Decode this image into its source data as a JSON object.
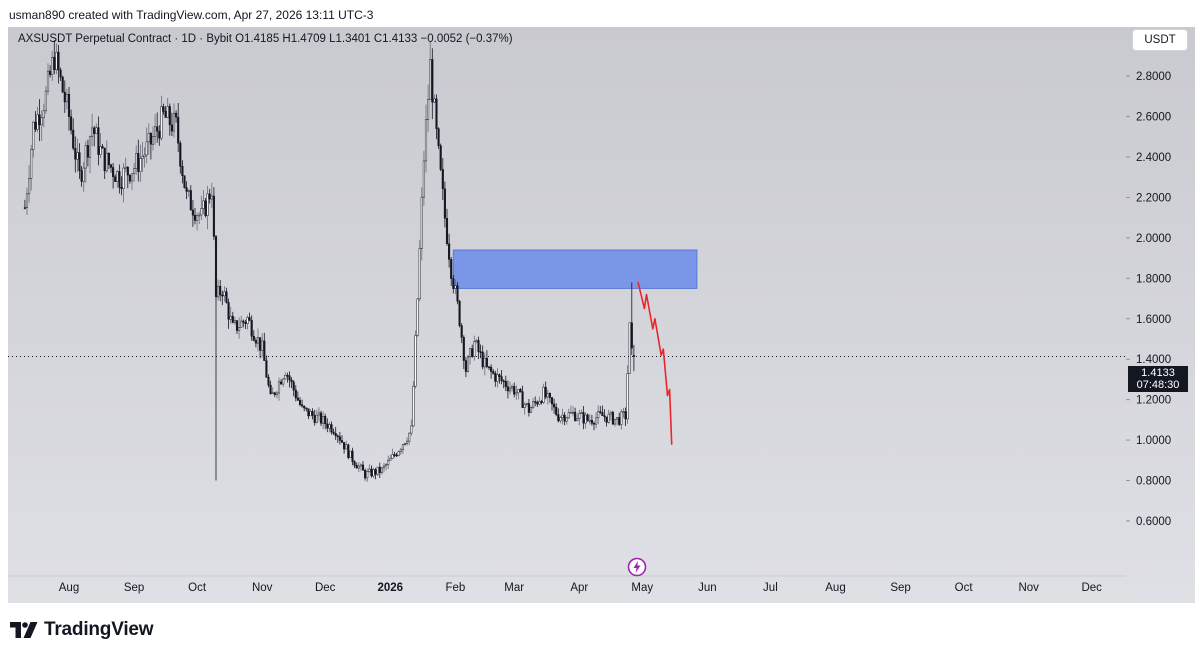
{
  "header": {
    "credit": "usman890 created with TradingView.com, Apr 27, 2026 13:11 UTC-3"
  },
  "legend": {
    "text": "AXSUSDT Perpetual Contract · 1D · Bybit  O1.4185  H1.4709  L1.3401  C1.4133  −0.0052 (−0.37%)"
  },
  "currency_button": "USDT",
  "last_price": {
    "price": "1.4133",
    "countdown": "07:48:30",
    "value": 1.4133
  },
  "footer": {
    "brand": "TradingView"
  },
  "colors": {
    "background": "#dfe0e5",
    "candle": "#131722",
    "zone": "#7b96e6",
    "projection": "#e8262d",
    "price_tag": "#131722"
  },
  "icons": {
    "logo": "tradingview-logo-icon",
    "lightning": "lightning-icon"
  },
  "chart_data": {
    "type": "candlestick",
    "symbol": "AXSUSDT Perpetual Contract",
    "interval": "1D",
    "exchange": "Bybit",
    "ohlc_last": {
      "open": 1.4185,
      "high": 1.4709,
      "low": 1.3401,
      "close": 1.4133,
      "change": -0.0052,
      "change_pct": -0.37
    },
    "y_axis": {
      "ticks": [
        0.6,
        0.8,
        1.0,
        1.2,
        1.4,
        1.6,
        1.8,
        2.0,
        2.2,
        2.4,
        2.6,
        2.8
      ],
      "tick_labels": [
        "0.6000",
        "0.8000",
        "1.0000",
        "1.2000",
        "1.4000",
        "1.6000",
        "1.8000",
        "2.0000",
        "2.2000",
        "2.4000",
        "2.6000",
        "2.8000"
      ],
      "ylim": [
        0.5,
        3.0
      ]
    },
    "x_axis": {
      "tick_labels": [
        "Aug",
        "Sep",
        "Oct",
        "Nov",
        "Dec",
        "2026",
        "Feb",
        "Mar",
        "Apr",
        "May",
        "Jun",
        "Jul",
        "Aug",
        "Sep",
        "Oct",
        "Nov",
        "Dec"
      ],
      "tick_dates": [
        "2025-08-01",
        "2025-09-01",
        "2025-10-01",
        "2025-11-01",
        "2025-12-01",
        "2026-01-01",
        "2026-02-01",
        "2026-03-01",
        "2026-04-01",
        "2026-05-01",
        "2026-06-01",
        "2026-07-01",
        "2026-08-01",
        "2026-09-01",
        "2026-10-01",
        "2026-11-01",
        "2026-12-01"
      ],
      "bold_label": "2026"
    },
    "price_anchors": [
      {
        "date": "2025-07-11",
        "close": 2.15
      },
      {
        "date": "2025-07-15",
        "close": 2.55
      },
      {
        "date": "2025-07-21",
        "close": 2.7
      },
      {
        "date": "2025-07-25",
        "close": 2.9
      },
      {
        "date": "2025-08-01",
        "close": 2.6
      },
      {
        "date": "2025-08-06",
        "close": 2.3
      },
      {
        "date": "2025-08-12",
        "close": 2.55
      },
      {
        "date": "2025-08-17",
        "close": 2.4
      },
      {
        "date": "2025-08-25",
        "close": 2.3
      },
      {
        "date": "2025-09-01",
        "close": 2.35
      },
      {
        "date": "2025-09-08",
        "close": 2.45
      },
      {
        "date": "2025-09-15",
        "close": 2.6
      },
      {
        "date": "2025-09-21",
        "close": 2.55
      },
      {
        "date": "2025-09-26",
        "close": 2.2
      },
      {
        "date": "2025-10-03",
        "close": 2.1
      },
      {
        "date": "2025-10-08",
        "close": 2.25
      },
      {
        "date": "2025-10-10",
        "close": 1.7
      },
      {
        "date": "2025-10-13",
        "close": 1.75
      },
      {
        "date": "2025-10-18",
        "close": 1.55
      },
      {
        "date": "2025-10-25",
        "close": 1.6
      },
      {
        "date": "2025-11-01",
        "close": 1.45
      },
      {
        "date": "2025-11-05",
        "close": 1.2
      },
      {
        "date": "2025-11-12",
        "close": 1.35
      },
      {
        "date": "2025-11-20",
        "close": 1.15
      },
      {
        "date": "2025-11-29",
        "close": 1.1
      },
      {
        "date": "2025-12-06",
        "close": 1.05
      },
      {
        "date": "2025-12-13",
        "close": 0.92
      },
      {
        "date": "2025-12-20",
        "close": 0.83
      },
      {
        "date": "2025-12-28",
        "close": 0.85
      },
      {
        "date": "2026-01-01",
        "close": 0.9
      },
      {
        "date": "2026-01-06",
        "close": 0.97
      },
      {
        "date": "2026-01-11",
        "close": 1.05
      },
      {
        "date": "2026-01-14",
        "close": 1.7
      },
      {
        "date": "2026-01-17",
        "close": 2.4
      },
      {
        "date": "2026-01-20",
        "close": 2.85
      },
      {
        "date": "2026-01-23",
        "close": 2.5
      },
      {
        "date": "2026-01-27",
        "close": 2.1
      },
      {
        "date": "2026-01-30",
        "close": 1.85
      },
      {
        "date": "2026-02-03",
        "close": 1.6
      },
      {
        "date": "2026-02-06",
        "close": 1.35
      },
      {
        "date": "2026-02-10",
        "close": 1.48
      },
      {
        "date": "2026-02-16",
        "close": 1.35
      },
      {
        "date": "2026-02-22",
        "close": 1.3
      },
      {
        "date": "2026-03-01",
        "close": 1.25
      },
      {
        "date": "2026-03-08",
        "close": 1.15
      },
      {
        "date": "2026-03-15",
        "close": 1.23
      },
      {
        "date": "2026-03-22",
        "close": 1.12
      },
      {
        "date": "2026-03-29",
        "close": 1.13
      },
      {
        "date": "2026-04-05",
        "close": 1.1
      },
      {
        "date": "2026-04-12",
        "close": 1.12
      },
      {
        "date": "2026-04-19",
        "close": 1.1
      },
      {
        "date": "2026-04-23",
        "close": 1.12
      },
      {
        "date": "2026-04-25",
        "close": 1.55
      },
      {
        "date": "2026-04-26",
        "close": 1.42
      },
      {
        "date": "2026-04-27",
        "close": 1.4133
      }
    ],
    "spikes": [
      {
        "date": "2025-10-10",
        "low": 0.8
      },
      {
        "date": "2026-04-26",
        "high": 1.78
      }
    ],
    "supply_zone": {
      "start": "2026-01-31",
      "end": "2026-05-27",
      "low": 1.75,
      "high": 1.94
    },
    "projection": [
      {
        "date": "2026-04-29",
        "price": 1.78
      },
      {
        "date": "2026-05-02",
        "price": 1.65
      },
      {
        "date": "2026-05-03",
        "price": 1.72
      },
      {
        "date": "2026-05-06",
        "price": 1.55
      },
      {
        "date": "2026-05-07",
        "price": 1.6
      },
      {
        "date": "2026-05-10",
        "price": 1.42
      },
      {
        "date": "2026-05-11",
        "price": 1.45
      },
      {
        "date": "2026-05-13",
        "price": 1.22
      },
      {
        "date": "2026-05-14",
        "price": 1.25
      },
      {
        "date": "2026-05-15",
        "price": 0.98
      }
    ]
  }
}
